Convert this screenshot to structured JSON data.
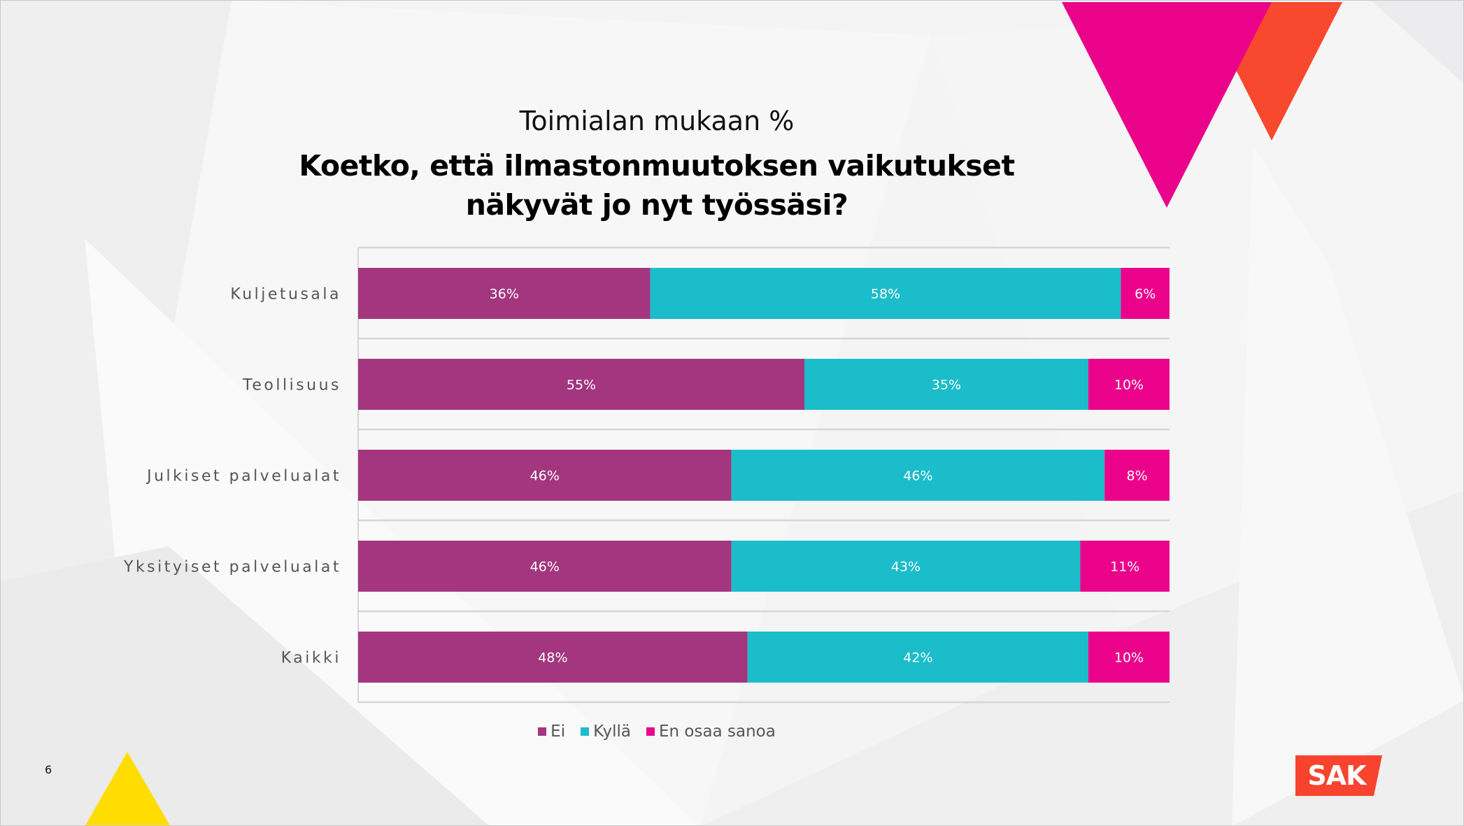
{
  "slide": {
    "subtitle": "Toimialan mukaan %",
    "title_line1": "Koetko, että ilmastonmuutoksen vaikutukset",
    "title_line2": "näkyvät jo nyt työssäsi?",
    "page_number": "6",
    "logo_text": "SAK"
  },
  "colors": {
    "ei": "#a3367f",
    "kylla": "#1bbdca",
    "en_osaa": "#ea038a",
    "accent_magenta": "#ea038a",
    "accent_orange": "#f8482e",
    "accent_yellow": "#ffdd00",
    "logo_red": "#f8432f"
  },
  "chart_data": {
    "type": "bar",
    "orientation": "horizontal",
    "stacked": true,
    "title": "Koetko, että ilmastonmuutoksen vaikutukset näkyvät jo nyt työssäsi?",
    "subtitle": "Toimialan mukaan %",
    "categories": [
      "Kuljetusala",
      "Teollisuus",
      "Julkiset palvelualat",
      "Yksityiset palvelualat",
      "Kaikki"
    ],
    "series": [
      {
        "name": "Ei",
        "values": [
          36,
          55,
          46,
          46,
          48
        ]
      },
      {
        "name": "Kyllä",
        "values": [
          58,
          35,
          46,
          43,
          42
        ]
      },
      {
        "name": "En osaa sanoa",
        "values": [
          6,
          10,
          8,
          11,
          10
        ]
      }
    ],
    "value_suffix": "%",
    "xlim": [
      0,
      100
    ],
    "xlabel": "",
    "ylabel": "",
    "grid": true,
    "legend": "bottom-center"
  }
}
